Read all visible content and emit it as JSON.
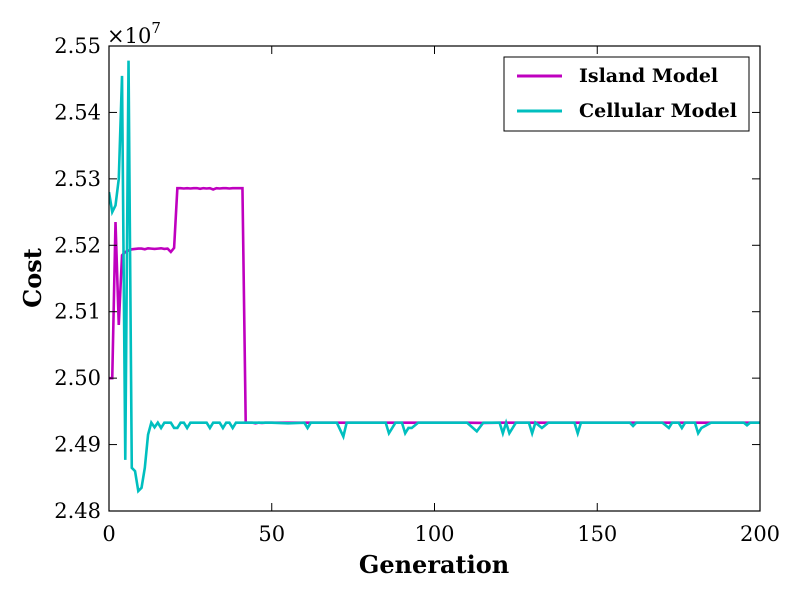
{
  "chart_data": {
    "type": "line",
    "xlabel": "Generation",
    "ylabel": "Cost",
    "xlim": [
      0,
      200
    ],
    "ylim": [
      24800000,
      25500000
    ],
    "x_ticks": [
      0,
      50,
      100,
      150,
      200
    ],
    "x_tick_labels": [
      "0",
      "50",
      "100",
      "150",
      "200"
    ],
    "y_ticks": [
      24800000,
      24900000,
      25000000,
      25100000,
      25200000,
      25300000,
      25400000,
      25500000
    ],
    "y_tick_labels": [
      "2.48",
      "2.49",
      "2.50",
      "2.51",
      "2.52",
      "2.53",
      "2.54",
      "2.55"
    ],
    "y_offset_base": "×10",
    "y_offset_exponent": "7",
    "grid": false,
    "legend_position": "top-right",
    "series": [
      {
        "name": "Island Model",
        "color": "#bf00bf",
        "x": [
          0,
          1,
          2,
          3,
          4,
          5,
          6,
          7,
          8,
          9,
          10,
          11,
          12,
          13,
          14,
          15,
          16,
          17,
          18,
          19,
          20,
          21,
          22,
          23,
          24,
          25,
          26,
          27,
          28,
          29,
          30,
          31,
          32,
          33,
          34,
          35,
          36,
          37,
          38,
          39,
          40,
          41,
          42,
          43,
          44,
          45,
          46,
          47,
          48,
          49,
          50,
          55,
          60,
          65,
          70,
          80,
          90,
          100,
          110,
          115,
          120,
          125,
          130,
          140,
          150,
          160,
          170,
          175,
          180,
          185,
          190,
          200
        ],
        "y": [
          25000000,
          25000000,
          25235000,
          25080000,
          25185000,
          25190000,
          25192000,
          25194000,
          25194500,
          25195000,
          25195000,
          25194000,
          25195500,
          25195000,
          25194500,
          25195000,
          25195500,
          25194500,
          25195000,
          25190000,
          25196000,
          25286000,
          25286000,
          25285500,
          25286000,
          25285500,
          25286000,
          25286000,
          25285000,
          25286000,
          25285500,
          25286000,
          25284000,
          25286000,
          25285500,
          25286000,
          25286000,
          25285500,
          25286000,
          25286000,
          25286000,
          25286000,
          24933000,
          24933000,
          24933000,
          24932000,
          24933000,
          24932500,
          24933000,
          24933000,
          24933000,
          24933000,
          24933000,
          24933000,
          24933000,
          24933000,
          24933000,
          24933000,
          24933000,
          24932500,
          24933000,
          24933000,
          24933000,
          24933000,
          24933000,
          24933000,
          24933000,
          24933000,
          24933000,
          24933000,
          24933000,
          24933000
        ]
      },
      {
        "name": "Cellular Model",
        "color": "#00bfbf",
        "x": [
          0,
          1,
          2,
          3,
          4,
          5,
          6,
          7,
          8,
          9,
          10,
          11,
          12,
          13,
          14,
          15,
          16,
          17,
          18,
          19,
          20,
          21,
          22,
          23,
          24,
          25,
          26,
          27,
          28,
          29,
          30,
          31,
          32,
          33,
          34,
          35,
          36,
          37,
          38,
          39,
          40,
          41,
          42,
          45,
          50,
          55,
          60,
          61,
          62,
          65,
          70,
          72,
          73,
          75,
          80,
          85,
          86,
          88,
          90,
          91,
          92,
          93,
          95,
          100,
          105,
          110,
          113,
          115,
          118,
          120,
          121,
          122,
          123,
          125,
          129,
          130,
          131,
          133,
          135,
          140,
          143,
          144,
          145,
          150,
          160,
          161,
          162,
          165,
          170,
          172,
          173,
          175,
          176,
          177,
          180,
          181,
          182,
          185,
          190,
          195,
          196,
          197,
          200
        ],
        "y": [
          25280000,
          25250000,
          25260000,
          25300000,
          25455000,
          24877000,
          25478000,
          24865000,
          24860000,
          24830000,
          24835000,
          24865000,
          24915000,
          24933000,
          24926000,
          24933000,
          24925000,
          24933000,
          24933000,
          24933000,
          24925000,
          24925000,
          24933000,
          24933000,
          24925000,
          24933000,
          24933000,
          24933000,
          24933000,
          24933000,
          24933000,
          24925000,
          24933000,
          24933000,
          24933000,
          24925000,
          24933000,
          24933000,
          24925000,
          24933000,
          24933000,
          24933000,
          24933000,
          24933000,
          24933000,
          24932000,
          24933000,
          24925000,
          24933000,
          24933000,
          24933000,
          24912000,
          24933000,
          24933000,
          24933000,
          24933000,
          24917000,
          24933000,
          24933000,
          24917000,
          24925000,
          24925000,
          24933000,
          24933000,
          24933000,
          24933000,
          24920000,
          24933000,
          24933000,
          24933000,
          24917000,
          24933000,
          24917000,
          24933000,
          24933000,
          24917000,
          24933000,
          24925000,
          24933000,
          24933000,
          24933000,
          24917000,
          24933000,
          24933000,
          24933000,
          24928000,
          24933000,
          24933000,
          24933000,
          24925000,
          24933000,
          24933000,
          24925000,
          24933000,
          24933000,
          24917000,
          24925000,
          24933000,
          24933000,
          24933000,
          24929000,
          24933000,
          24933000
        ]
      }
    ]
  }
}
